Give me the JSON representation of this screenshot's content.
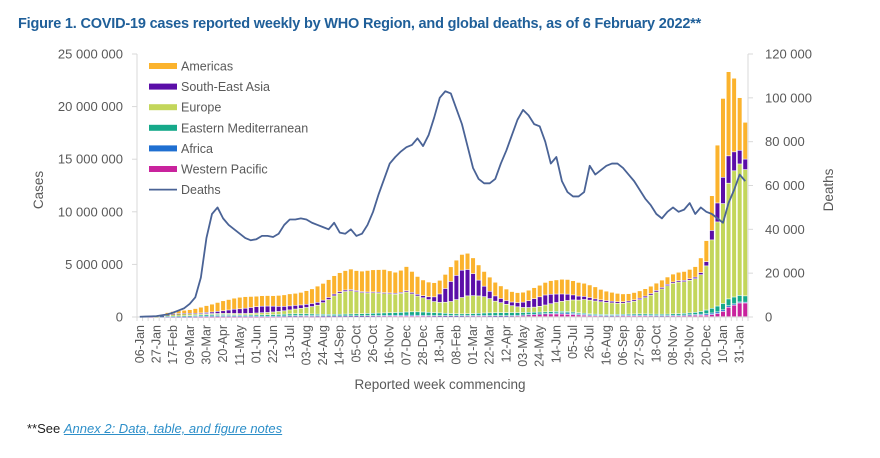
{
  "title": "Figure 1. COVID-19 cases reported weekly by WHO Region, and global deaths, as of 6 February 2022**",
  "footnote": {
    "prefix": "**See ",
    "link_text": "Annex 2: Data, table, and figure notes"
  },
  "chart_data": {
    "type": "bar",
    "stacked": true,
    "title": "Figure 1. COVID-19 cases reported weekly by WHO Region, and global deaths, as of 6 February 2022**",
    "xlabel": "Reported week commencing",
    "ylabel": "Cases",
    "y2label": "Deaths",
    "ylim": [
      0,
      25000000
    ],
    "y2lim": [
      0,
      120000
    ],
    "yticks": [
      "0",
      "5 000 000",
      "10 000 000",
      "15 000 000",
      "20 000 000",
      "25 000 000"
    ],
    "y2ticks": [
      "0",
      "20 000",
      "40 000",
      "60 000",
      "80 000",
      "100 000",
      "120 000"
    ],
    "xtick_labels": [
      "06-Jan",
      "27-Jan",
      "17-Feb",
      "09-Mar",
      "30-Mar",
      "20-Apr",
      "11-May",
      "01-Jun",
      "22-Jun",
      "13-Jul",
      "03-Aug",
      "24-Aug",
      "14-Sep",
      "05-Oct",
      "26-Oct",
      "16-Nov",
      "07-Dec",
      "28-Dec",
      "18-Jan",
      "08-Feb",
      "01-Mar",
      "22-Mar",
      "12-Apr",
      "03-May",
      "24-May",
      "14-Jun",
      "05-Jul",
      "26-Jul",
      "16-Aug",
      "06-Sep",
      "27-Sep",
      "18-Oct",
      "08-Nov",
      "29-Nov",
      "20-Dec",
      "10-Jan",
      "31-Jan"
    ],
    "xtick_every": 3,
    "grid": false,
    "legend_position": "top-left",
    "legend": [
      "Americas",
      "South-East Asia",
      "Europe",
      "Eastern Mediterranean",
      "Africa",
      "Western Pacific",
      "Deaths"
    ],
    "colors": {
      "Americas": "#fbb32d",
      "South-East Asia": "#5b0ea8",
      "Europe": "#c3d65b",
      "Eastern Mediterranean": "#16a98a",
      "Africa": "#1f6fd1",
      "Western Pacific": "#c9239d",
      "Deaths": "#4a6396"
    },
    "stack_order": [
      "Western Pacific",
      "Africa",
      "Eastern Mediterranean",
      "Europe",
      "South-East Asia",
      "Americas"
    ],
    "series": [
      {
        "name": "Western Pacific",
        "values": [
          0,
          0,
          1000,
          10000,
          20000,
          15000,
          10000,
          5000,
          3000,
          3000,
          4000,
          4000,
          5000,
          5000,
          5000,
          5000,
          5000,
          6000,
          6000,
          6000,
          5000,
          5000,
          6000,
          8000,
          10000,
          15000,
          20000,
          25000,
          25000,
          25000,
          25000,
          20000,
          20000,
          20000,
          25000,
          30000,
          30000,
          35000,
          40000,
          45000,
          45000,
          50000,
          55000,
          55000,
          50000,
          45000,
          40000,
          35000,
          35000,
          35000,
          35000,
          35000,
          35000,
          35000,
          40000,
          45000,
          50000,
          55000,
          60000,
          70000,
          70000,
          75000,
          70000,
          60000,
          55000,
          55000,
          60000,
          80000,
          100000,
          130000,
          170000,
          200000,
          230000,
          250000,
          260000,
          260000,
          250000,
          230000,
          200000,
          170000,
          140000,
          110000,
          90000,
          80000,
          80000,
          80000,
          90000,
          100000,
          110000,
          110000,
          110000,
          100000,
          90000,
          80000,
          80000,
          80000,
          90000,
          100000,
          110000,
          120000,
          130000,
          140000,
          150000,
          200000,
          300000,
          500000,
          900000,
          1100000,
          1300000,
          1300000
        ]
      },
      {
        "name": "Africa",
        "values": [
          0,
          0,
          0,
          0,
          1000,
          5000,
          8000,
          10000,
          12000,
          15000,
          20000,
          30000,
          50000,
          70000,
          90000,
          100000,
          100000,
          90000,
          70000,
          60000,
          50000,
          45000,
          40000,
          40000,
          40000,
          45000,
          50000,
          60000,
          70000,
          80000,
          90000,
          90000,
          80000,
          70000,
          60000,
          50000,
          45000,
          40000,
          40000,
          40000,
          40000,
          45000,
          50000,
          60000,
          70000,
          80000,
          90000,
          100000,
          110000,
          110000,
          100000,
          90000,
          80000,
          70000,
          60000,
          50000,
          45000,
          40000,
          40000,
          40000,
          45000,
          50000,
          50000,
          45000,
          40000,
          35000,
          30000,
          30000,
          30000,
          30000,
          30000,
          30000,
          30000,
          40000,
          60000,
          90000,
          120000,
          130000,
          120000,
          100000,
          80000,
          60000,
          50000,
          40000,
          30000,
          30000,
          30000,
          30000,
          30000,
          30000,
          30000,
          30000,
          30000,
          30000,
          30000,
          35000,
          40000,
          45000,
          50000,
          60000,
          80000,
          100000,
          130000,
          150000,
          160000,
          150000,
          140000,
          120000,
          100000,
          80000
        ]
      },
      {
        "name": "Eastern Mediterranean",
        "values": [
          0,
          0,
          0,
          2000,
          10000,
          20000,
          30000,
          45000,
          60000,
          80000,
          100000,
          120000,
          130000,
          130000,
          120000,
          110000,
          100000,
          95000,
          95000,
          100000,
          110000,
          120000,
          130000,
          140000,
          150000,
          160000,
          170000,
          180000,
          180000,
          170000,
          160000,
          150000,
          140000,
          140000,
          140000,
          150000,
          160000,
          170000,
          180000,
          190000,
          200000,
          210000,
          220000,
          230000,
          240000,
          250000,
          260000,
          280000,
          300000,
          320000,
          330000,
          320000,
          300000,
          280000,
          260000,
          230000,
          200000,
          180000,
          170000,
          170000,
          180000,
          200000,
          230000,
          260000,
          280000,
          290000,
          290000,
          280000,
          260000,
          240000,
          220000,
          200000,
          180000,
          170000,
          160000,
          150000,
          140000,
          130000,
          120000,
          110000,
          110000,
          100000,
          100000,
          100000,
          100000,
          100000,
          100000,
          100000,
          110000,
          120000,
          130000,
          130000,
          130000,
          130000,
          130000,
          130000,
          140000,
          150000,
          160000,
          180000,
          200000,
          250000,
          350000,
          450000,
          550000,
          600000,
          650000,
          650000,
          620000,
          600000
        ]
      },
      {
        "name": "Europe",
        "values": [
          0,
          0,
          0,
          10000,
          60000,
          150000,
          200000,
          230000,
          220000,
          180000,
          140000,
          110000,
          100000,
          90000,
          90000,
          100000,
          110000,
          120000,
          130000,
          140000,
          160000,
          180000,
          200000,
          220000,
          250000,
          280000,
          320000,
          380000,
          450000,
          520000,
          600000,
          700000,
          850000,
          1100000,
          1400000,
          1750000,
          2000000,
          2150000,
          2200000,
          2100000,
          2000000,
          1950000,
          1950000,
          1900000,
          1850000,
          1800000,
          1750000,
          1800000,
          1900000,
          1700000,
          1500000,
          1350000,
          1200000,
          1050000,
          1000000,
          1050000,
          1150000,
          1350000,
          1550000,
          1700000,
          1700000,
          1650000,
          1550000,
          1350000,
          1100000,
          950000,
          800000,
          650000,
          550000,
          480000,
          450000,
          480000,
          550000,
          650000,
          750000,
          850000,
          950000,
          1050000,
          1150000,
          1200000,
          1300000,
          1300000,
          1250000,
          1200000,
          1150000,
          1100000,
          1050000,
          1050000,
          1100000,
          1200000,
          1350000,
          1550000,
          1800000,
          2100000,
          2400000,
          2700000,
          2900000,
          3000000,
          3000000,
          3100000,
          3200000,
          3500000,
          4200000,
          6500000,
          8000000,
          9500000,
          11000000,
          12000000,
          12500000,
          12000000
        ]
      },
      {
        "name": "South-East Asia",
        "values": [
          0,
          0,
          0,
          0,
          1000,
          2000,
          5000,
          10000,
          20000,
          40000,
          60000,
          90000,
          120000,
          150000,
          200000,
          250000,
          320000,
          400000,
          450000,
          500000,
          550000,
          600000,
          620000,
          600000,
          550000,
          480000,
          420000,
          380000,
          350000,
          320000,
          300000,
          290000,
          270000,
          240000,
          200000,
          170000,
          150000,
          140000,
          120000,
          110000,
          100000,
          90000,
          85000,
          80000,
          80000,
          85000,
          90000,
          100000,
          120000,
          140000,
          160000,
          200000,
          280000,
          450000,
          800000,
          1300000,
          1900000,
          2300000,
          2600000,
          2500000,
          2100000,
          1500000,
          1000000,
          700000,
          500000,
          400000,
          350000,
          350000,
          400000,
          500000,
          650000,
          800000,
          900000,
          950000,
          900000,
          800000,
          700000,
          600000,
          480000,
          380000,
          300000,
          250000,
          200000,
          180000,
          170000,
          160000,
          150000,
          140000,
          140000,
          140000,
          140000,
          150000,
          150000,
          150000,
          140000,
          130000,
          130000,
          130000,
          130000,
          140000,
          150000,
          200000,
          400000,
          900000,
          1800000,
          2500000,
          2600000,
          1800000,
          1300000,
          1000000
        ]
      },
      {
        "name": "Americas",
        "values": [
          0,
          0,
          0,
          5000,
          100000,
          200000,
          250000,
          280000,
          300000,
          350000,
          450000,
          550000,
          650000,
          750000,
          850000,
          950000,
          1000000,
          1050000,
          1100000,
          1100000,
          1050000,
          1000000,
          1000000,
          1000000,
          1000000,
          1050000,
          1100000,
          1150000,
          1150000,
          1200000,
          1300000,
          1400000,
          1550000,
          1600000,
          1700000,
          1750000,
          1800000,
          1850000,
          1950000,
          1900000,
          1950000,
          2050000,
          2100000,
          2150000,
          2200000,
          2100000,
          2000000,
          2100000,
          2300000,
          2000000,
          1700000,
          1500000,
          1400000,
          1350000,
          1300000,
          1350000,
          1400000,
          1450000,
          1500000,
          1550000,
          1500000,
          1450000,
          1400000,
          1350000,
          1300000,
          1200000,
          1100000,
          1000000,
          950000,
          950000,
          1000000,
          1050000,
          1100000,
          1200000,
          1300000,
          1350000,
          1400000,
          1400000,
          1350000,
          1300000,
          1250000,
          1200000,
          1150000,
          1000000,
          900000,
          850000,
          800000,
          750000,
          700000,
          700000,
          700000,
          700000,
          700000,
          700000,
          700000,
          700000,
          750000,
          800000,
          850000,
          900000,
          1000000,
          1400000,
          2000000,
          3300000,
          5500000,
          7500000,
          8000000,
          7000000,
          5000000,
          3500000
        ]
      }
    ],
    "deaths": [
      100,
      200,
      300,
      400,
      800,
      1200,
      2000,
      3000,
      4000,
      6000,
      9000,
      18000,
      36000,
      47000,
      50000,
      45000,
      42000,
      40000,
      38000,
      36000,
      35000,
      35500,
      37000,
      37000,
      36500,
      38000,
      42000,
      44500,
      44500,
      45000,
      44500,
      43000,
      42000,
      41000,
      40000,
      43000,
      38500,
      38000,
      40000,
      37000,
      38000,
      42000,
      48000,
      56000,
      63000,
      70000,
      73000,
      75500,
      77500,
      78500,
      81500,
      78000,
      83000,
      91000,
      100000,
      103000,
      102000,
      95000,
      88000,
      78000,
      68000,
      63000,
      61000,
      61000,
      63000,
      70000,
      76000,
      83000,
      90000,
      94500,
      92000,
      88000,
      87000,
      80000,
      70000,
      73000,
      62000,
      57000,
      55000,
      55000,
      57000,
      69000,
      65000,
      67000,
      69000,
      70000,
      70000,
      68000,
      65000,
      62000,
      58000,
      54000,
      51000,
      47000,
      45000,
      48000,
      50000,
      48000,
      49000,
      52000,
      47000,
      50000,
      48000,
      47000,
      45000,
      43000,
      52000,
      58000,
      65000,
      62000
    ]
  }
}
